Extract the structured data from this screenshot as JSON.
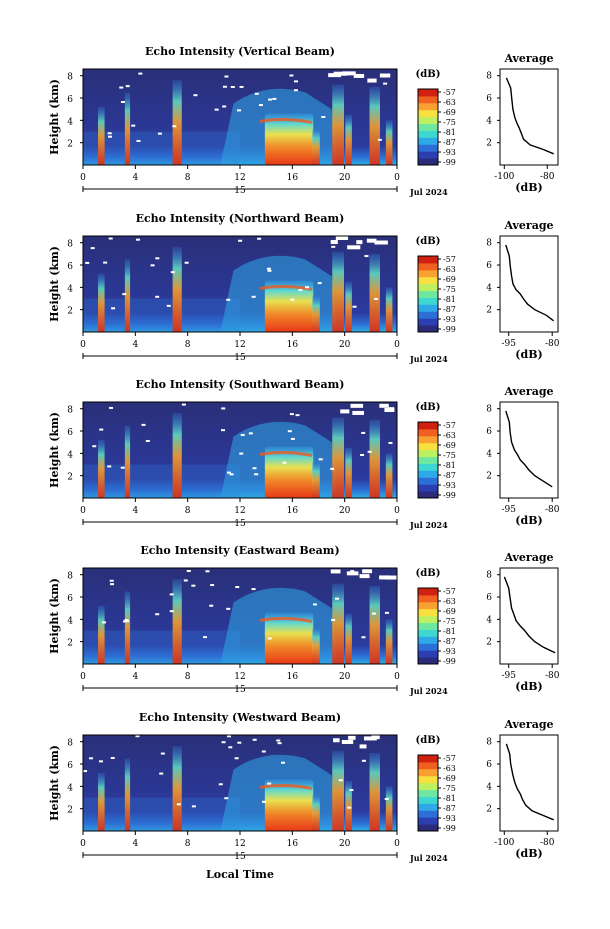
{
  "x_axis_title": "Local Time",
  "average_title": "Average",
  "colorbar_unit": "(dB)",
  "average_xlabel": "(dB)",
  "height_label": "Height (km)",
  "date_day": "15",
  "date_label": "Jul 2024",
  "time_ticks": [
    "0",
    "4",
    "8",
    "12",
    "16",
    "20",
    "0"
  ],
  "height_ticks": [
    "2",
    "4",
    "6",
    "8"
  ],
  "colorbar_ticks": [
    "-57",
    "-63",
    "-69",
    "-75",
    "-81",
    "-87",
    "-93",
    "-99"
  ],
  "colorbar_colors": [
    "#2b2b7a",
    "#2c3fb0",
    "#2d6fd8",
    "#2fa8e8",
    "#3dd6d0",
    "#6ee8a0",
    "#bdf060",
    "#f8e040",
    "#f8a030",
    "#f06020",
    "#d02010"
  ],
  "chart_data": [
    {
      "type": "heatmap",
      "title": "Echo Intensity (Vertical Beam)",
      "ylabel": "Height (km)",
      "xlabel": "Local Time",
      "xlim": [
        0,
        24
      ],
      "ylim": [
        0,
        8
      ],
      "color_scale_db": [
        -99,
        -57
      ],
      "profile": {
        "title": "Average",
        "xlabel": "(dB)",
        "xticks": [
          "-100",
          "-80"
        ],
        "xlim": [
          -102,
          -75
        ],
        "points": [
          [
            -99,
            7.8
          ],
          [
            -97,
            6.9
          ],
          [
            -96.5,
            5.9
          ],
          [
            -96,
            5.0
          ],
          [
            -95,
            4.2
          ],
          [
            -94,
            3.7
          ],
          [
            -93,
            3.3
          ],
          [
            -92,
            2.8
          ],
          [
            -91,
            2.3
          ],
          [
            -88,
            1.8
          ],
          [
            -82,
            1.4
          ],
          [
            -77,
            1.0
          ]
        ]
      }
    },
    {
      "type": "heatmap",
      "title": "Echo Intensity (Northward Beam)",
      "ylabel": "Height (km)",
      "xlabel": "Local Time",
      "xlim": [
        0,
        24
      ],
      "ylim": [
        0,
        8
      ],
      "color_scale_db": [
        -99,
        -57
      ],
      "profile": {
        "title": "Average",
        "xlabel": "(dB)",
        "xticks": [
          "-95",
          "-80"
        ],
        "xlim": [
          -98,
          -78
        ],
        "points": [
          [
            -96,
            7.8
          ],
          [
            -94.8,
            6.8
          ],
          [
            -94.5,
            6.0
          ],
          [
            -94,
            5.0
          ],
          [
            -93.5,
            4.3
          ],
          [
            -92.5,
            3.8
          ],
          [
            -91,
            3.4
          ],
          [
            -90,
            3.0
          ],
          [
            -88.5,
            2.5
          ],
          [
            -86,
            2.0
          ],
          [
            -82,
            1.5
          ],
          [
            -79.5,
            1.0
          ]
        ]
      }
    },
    {
      "type": "heatmap",
      "title": "Echo Intensity (Southward Beam)",
      "ylabel": "Height (km)",
      "xlabel": "Local Time",
      "xlim": [
        0,
        24
      ],
      "ylim": [
        0,
        8
      ],
      "color_scale_db": [
        -99,
        -57
      ],
      "profile": {
        "title": "Average",
        "xlabel": "(dB)",
        "xticks": [
          "-95",
          "-80"
        ],
        "xlim": [
          -98,
          -78
        ],
        "points": [
          [
            -96,
            7.8
          ],
          [
            -94.8,
            6.8
          ],
          [
            -94.5,
            5.9
          ],
          [
            -94,
            5.0
          ],
          [
            -93,
            4.3
          ],
          [
            -92,
            3.9
          ],
          [
            -91,
            3.4
          ],
          [
            -89.5,
            3.0
          ],
          [
            -88,
            2.5
          ],
          [
            -86,
            2.0
          ],
          [
            -83,
            1.5
          ],
          [
            -80,
            1.0
          ]
        ]
      }
    },
    {
      "type": "heatmap",
      "title": "Echo Intensity (Eastward Beam)",
      "ylabel": "Height (km)",
      "xlabel": "Local Time",
      "xlim": [
        0,
        24
      ],
      "ylim": [
        0,
        8
      ],
      "color_scale_db": [
        -99,
        -57
      ],
      "profile": {
        "title": "Average",
        "xlabel": "(dB)",
        "xticks": [
          "-95",
          "-80"
        ],
        "xlim": [
          -98,
          -78
        ],
        "points": [
          [
            -96.5,
            7.8
          ],
          [
            -95,
            6.8
          ],
          [
            -94.5,
            5.9
          ],
          [
            -94,
            5.0
          ],
          [
            -93,
            4.3
          ],
          [
            -92.5,
            3.9
          ],
          [
            -91,
            3.4
          ],
          [
            -89.5,
            3.0
          ],
          [
            -88,
            2.5
          ],
          [
            -86,
            2.0
          ],
          [
            -83,
            1.5
          ],
          [
            -79,
            1.0
          ]
        ]
      }
    },
    {
      "type": "heatmap",
      "title": "Echo Intensity (Westward Beam)",
      "ylabel": "Height (km)",
      "xlabel": "Local Time",
      "xlim": [
        0,
        24
      ],
      "ylim": [
        0,
        8
      ],
      "color_scale_db": [
        -99,
        -57
      ],
      "profile": {
        "title": "Average",
        "xlabel": "(dB)",
        "xticks": [
          "-100",
          "-80"
        ],
        "xlim": [
          -102,
          -75
        ],
        "points": [
          [
            -99,
            7.8
          ],
          [
            -97.5,
            6.9
          ],
          [
            -97,
            6.0
          ],
          [
            -96,
            5.0
          ],
          [
            -95,
            4.3
          ],
          [
            -94,
            3.8
          ],
          [
            -92.5,
            3.3
          ],
          [
            -91.5,
            2.8
          ],
          [
            -90,
            2.3
          ],
          [
            -87,
            1.8
          ],
          [
            -82,
            1.4
          ],
          [
            -77,
            1.0
          ]
        ]
      }
    }
  ]
}
